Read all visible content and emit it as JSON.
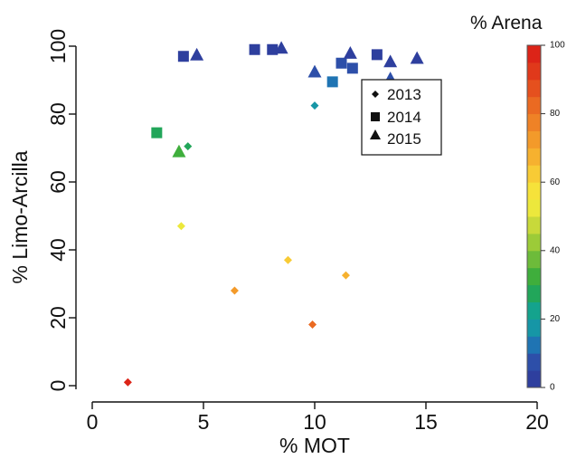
{
  "chart_data": {
    "type": "scatter",
    "xlabel": "% MOT",
    "ylabel": "% Limo-Arcilla",
    "xlim": [
      0,
      20
    ],
    "ylim": [
      0,
      100
    ],
    "x_ticks": [
      0,
      5,
      10,
      15,
      20
    ],
    "y_ticks": [
      0,
      20,
      40,
      60,
      80,
      100
    ],
    "x_tick_labels": [
      "0",
      "5",
      "10",
      "15",
      "20"
    ],
    "y_tick_labels": [
      "0",
      "20",
      "40",
      "60",
      "80",
      "100"
    ],
    "legend": {
      "placement": "top-right",
      "entries": [
        {
          "label": "2013",
          "marker": "diamond"
        },
        {
          "label": "2014",
          "marker": "square"
        },
        {
          "label": "2015",
          "marker": "triangle"
        }
      ]
    },
    "colorbar": {
      "title": "% Arena",
      "range": [
        0,
        100
      ],
      "tick_labels": [
        "0",
        "20",
        "40",
        "60",
        "80",
        "100"
      ],
      "colors_low_to_high": [
        "#2e3f9e",
        "#2d4fa9",
        "#1f74b3",
        "#1696a6",
        "#14a38d",
        "#22a65a",
        "#3fae3c",
        "#6dbb3a",
        "#9ccb38",
        "#c8d93a",
        "#ece83c",
        "#f6e23a",
        "#f8cb35",
        "#f6b12f",
        "#f39a2a",
        "#ef8226",
        "#ea6a22",
        "#e5501e",
        "#e0391b",
        "#dc2418"
      ]
    },
    "series": [
      {
        "name": "2013",
        "marker": "diamond",
        "points": [
          {
            "x": 1.6,
            "y": 1,
            "sand": 95
          },
          {
            "x": 4.0,
            "y": 47,
            "sand": 53
          },
          {
            "x": 4.3,
            "y": 70.5,
            "sand": 29
          },
          {
            "x": 6.4,
            "y": 28,
            "sand": 72
          },
          {
            "x": 8.8,
            "y": 37,
            "sand": 63
          },
          {
            "x": 9.9,
            "y": 18,
            "sand": 82
          },
          {
            "x": 10.0,
            "y": 82.5,
            "sand": 17
          },
          {
            "x": 11.4,
            "y": 32.5,
            "sand": 67
          }
        ]
      },
      {
        "name": "2014",
        "marker": "square",
        "points": [
          {
            "x": 2.9,
            "y": 74.5,
            "sand": 25
          },
          {
            "x": 4.1,
            "y": 97,
            "sand": 3
          },
          {
            "x": 7.3,
            "y": 99,
            "sand": 1
          },
          {
            "x": 8.1,
            "y": 99,
            "sand": 1
          },
          {
            "x": 10.8,
            "y": 89.5,
            "sand": 10
          },
          {
            "x": 11.2,
            "y": 95,
            "sand": 5
          },
          {
            "x": 11.7,
            "y": 93.5,
            "sand": 6
          },
          {
            "x": 12.8,
            "y": 97.5,
            "sand": 2
          }
        ]
      },
      {
        "name": "2015",
        "marker": "triangle",
        "points": [
          {
            "x": 3.9,
            "y": 69,
            "sand": 31
          },
          {
            "x": 4.7,
            "y": 97.5,
            "sand": 2
          },
          {
            "x": 8.5,
            "y": 99.5,
            "sand": 0
          },
          {
            "x": 10.0,
            "y": 92.5,
            "sand": 7
          },
          {
            "x": 11.6,
            "y": 98,
            "sand": 2
          },
          {
            "x": 13.4,
            "y": 95.5,
            "sand": 4
          },
          {
            "x": 13.4,
            "y": 90.5,
            "sand": 9
          },
          {
            "x": 14.6,
            "y": 96.5,
            "sand": 3
          }
        ]
      }
    ],
    "grid": false
  }
}
